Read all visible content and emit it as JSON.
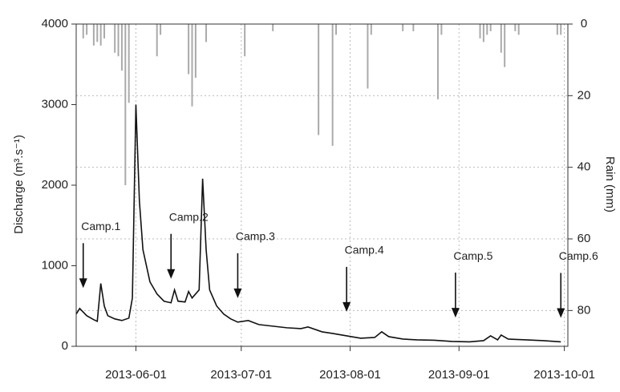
{
  "chart_data": {
    "type": "line",
    "y_label": "Discharge (m³.s⁻¹)",
    "y2_label": "Rain (mm)",
    "xlim": [
      "2013-05-15",
      "2013-10-02"
    ],
    "xticks": [
      "2013-06-01",
      "2013-07-01",
      "2013-08-01",
      "2013-09-01",
      "2013-10-01"
    ],
    "ylim": [
      0,
      4000
    ],
    "yticks": [
      0,
      1000,
      2000,
      3000,
      4000
    ],
    "y2lim": [
      0,
      90
    ],
    "y2ticks": [
      0,
      20,
      40,
      60,
      80
    ],
    "y2_reversed": true,
    "grid": true,
    "series": [
      {
        "type": "line",
        "color": "#111111",
        "x": [
          "2013-05-15",
          "2013-05-16",
          "2013-05-18",
          "2013-05-20",
          "2013-05-21",
          "2013-05-22",
          "2013-05-23",
          "2013-05-24",
          "2013-05-26",
          "2013-05-28",
          "2013-05-30",
          "2013-05-31",
          "2013-06-01",
          "2013-06-02",
          "2013-06-03",
          "2013-06-05",
          "2013-06-07",
          "2013-06-09",
          "2013-06-11",
          "2013-06-12",
          "2013-06-13",
          "2013-06-15",
          "2013-06-16",
          "2013-06-17",
          "2013-06-18",
          "2013-06-19",
          "2013-06-20",
          "2013-06-21",
          "2013-06-22",
          "2013-06-24",
          "2013-06-26",
          "2013-06-28",
          "2013-06-30",
          "2013-07-03",
          "2013-07-06",
          "2013-07-10",
          "2013-07-14",
          "2013-07-18",
          "2013-07-20",
          "2013-07-24",
          "2013-07-27",
          "2013-07-31",
          "2013-08-04",
          "2013-08-08",
          "2013-08-10",
          "2013-08-12",
          "2013-08-16",
          "2013-08-20",
          "2013-08-25",
          "2013-08-30",
          "2013-09-04",
          "2013-09-08",
          "2013-09-10",
          "2013-09-12",
          "2013-09-13",
          "2013-09-15",
          "2013-09-20",
          "2013-09-25",
          "2013-09-30"
        ],
        "values": [
          400,
          470,
          380,
          330,
          310,
          780,
          500,
          380,
          340,
          320,
          350,
          600,
          3000,
          1800,
          1200,
          800,
          650,
          560,
          540,
          700,
          560,
          550,
          680,
          600,
          650,
          700,
          2080,
          1200,
          700,
          500,
          400,
          340,
          300,
          320,
          270,
          250,
          230,
          220,
          240,
          180,
          160,
          130,
          100,
          110,
          180,
          120,
          90,
          80,
          75,
          60,
          55,
          70,
          130,
          80,
          140,
          90,
          80,
          70,
          55
        ]
      },
      {
        "type": "bar",
        "axis": "y2",
        "color": "#aaaaaa",
        "x": [
          "2013-05-17",
          "2013-05-18",
          "2013-05-20",
          "2013-05-21",
          "2013-05-22",
          "2013-05-23",
          "2013-05-26",
          "2013-05-27",
          "2013-05-28",
          "2013-05-29",
          "2013-05-30",
          "2013-06-07",
          "2013-06-08",
          "2013-06-16",
          "2013-06-17",
          "2013-06-18",
          "2013-06-21",
          "2013-07-02",
          "2013-07-10",
          "2013-07-23",
          "2013-07-27",
          "2013-07-28",
          "2013-08-06",
          "2013-08-07",
          "2013-08-16",
          "2013-08-19",
          "2013-08-26",
          "2013-08-27",
          "2013-09-07",
          "2013-09-08",
          "2013-09-09",
          "2013-09-10",
          "2013-09-13",
          "2013-09-14",
          "2013-09-17",
          "2013-09-18",
          "2013-09-29",
          "2013-09-30"
        ],
        "values": [
          4,
          3,
          6,
          5,
          6,
          4,
          8,
          9,
          13,
          45,
          22,
          9,
          3,
          14,
          23,
          15,
          5,
          9,
          2,
          31,
          34,
          3,
          18,
          3,
          2,
          2,
          21,
          3,
          4,
          5,
          3,
          2,
          8,
          12,
          2,
          3,
          3,
          3
        ]
      }
    ],
    "annotations": [
      {
        "text": "Camp.1",
        "x": "2013-05-17"
      },
      {
        "text": "Camp.2",
        "x": "2013-06-11"
      },
      {
        "text": "Camp.3",
        "x": "2013-06-30"
      },
      {
        "text": "Camp.4",
        "x": "2013-07-31"
      },
      {
        "text": "Camp.5",
        "x": "2013-08-31"
      },
      {
        "text": "Camp.6",
        "x": "2013-09-30"
      }
    ]
  }
}
